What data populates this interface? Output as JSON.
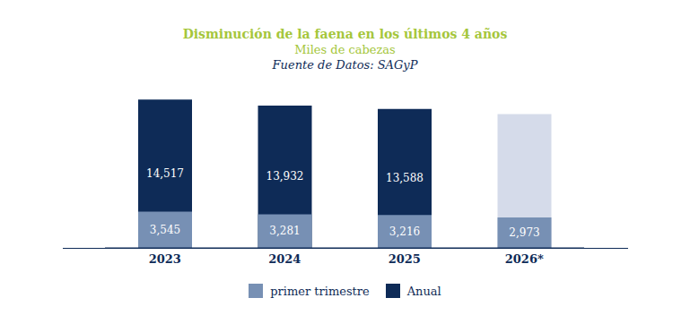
{
  "chart_data": {
    "type": "bar",
    "title": "Disminución de la faena en los últimos 4 años",
    "subtitle": "Miles de cabezas",
    "source": "Fuente de Datos: SAGyP",
    "categories": [
      "2023",
      "2024",
      "2025",
      "2026*"
    ],
    "series": [
      {
        "name": "Anual",
        "color": "#0e2b57",
        "colors": [
          "#0e2b57",
          "#0e2b57",
          "#0e2b57",
          "#d5dbea"
        ],
        "values": [
          14517,
          13932,
          13588,
          13100
        ],
        "value_labels": [
          "14,517",
          "13,932",
          "13,588",
          null
        ]
      },
      {
        "name": "primer trimestre",
        "color": "#7790b4",
        "values": [
          3545,
          3281,
          3216,
          2973
        ],
        "value_labels": [
          "3,545",
          "3,281",
          "3,216",
          "2,973"
        ]
      }
    ],
    "ylim": [
      0,
      15500
    ],
    "data_labels": true,
    "tick_labels": "x",
    "grid": false,
    "legend": "bottom"
  }
}
